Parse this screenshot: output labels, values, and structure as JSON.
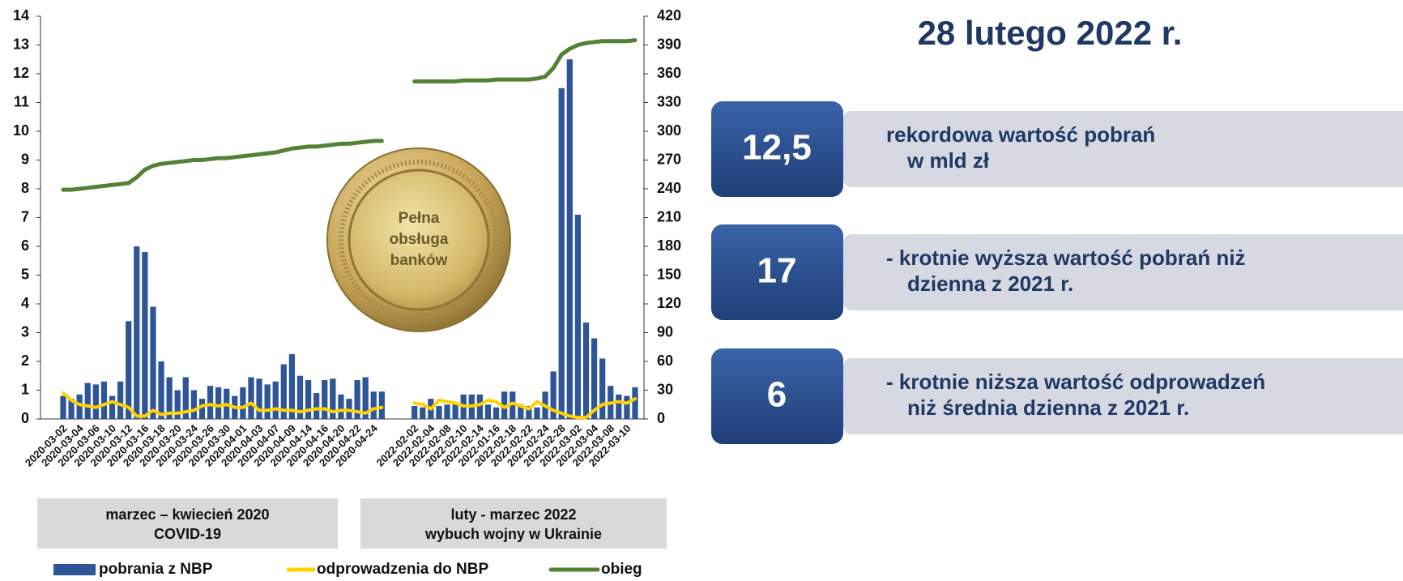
{
  "chart_data": {
    "type": "combo",
    "categories": [
      "2020-03-02",
      null,
      "2020-03-04",
      null,
      "2020-03-06",
      null,
      "2020-03-10",
      null,
      "2020-03-12",
      null,
      "2020-03-16",
      null,
      "2020-03-18",
      null,
      "2020-03-20",
      null,
      "2020-03-24",
      null,
      "2020-03-26",
      null,
      "2020-03-30",
      null,
      "2020-04-01",
      null,
      "2020-04-03",
      null,
      "2020-04-07",
      null,
      "2020-04-09",
      null,
      "2020-04-14",
      null,
      "2020-04-16",
      null,
      "2020-04-20",
      null,
      "2020-04-22",
      null,
      "2020-04-24",
      null,
      null,
      null,
      null,
      "2022-02-02",
      null,
      "2022-02-04",
      null,
      "2022-02-08",
      null,
      "2022-02-10",
      null,
      "2022-02-14",
      null,
      "2022-01-16",
      null,
      "2022-02-18",
      null,
      "2022-02-22",
      null,
      "2022-02-24",
      null,
      "2022-02-28",
      null,
      "2022-03-02",
      null,
      "2022-03-04",
      null,
      "2022-03-08",
      null,
      "2022-03-10",
      null
    ],
    "series": [
      {
        "name": "pobrania z NBP",
        "type": "bar",
        "color": "#2e5597",
        "values": [
          0.8,
          0.7,
          0.85,
          1.25,
          1.2,
          1.3,
          0.8,
          1.3,
          3.4,
          6.0,
          5.8,
          3.9,
          2.0,
          1.45,
          1.0,
          1.45,
          1.0,
          0.7,
          1.15,
          1.1,
          1.05,
          0.8,
          1.1,
          1.45,
          1.4,
          1.2,
          1.3,
          1.9,
          2.25,
          1.5,
          1.35,
          0.9,
          1.35,
          1.4,
          0.85,
          0.7,
          1.35,
          1.45,
          0.95,
          0.95,
          null,
          null,
          null,
          0.45,
          0.4,
          0.7,
          0.45,
          0.5,
          0.5,
          0.85,
          0.85,
          0.85,
          0.5,
          0.4,
          0.95,
          0.95,
          0.5,
          0.45,
          0.4,
          0.95,
          1.65,
          11.5,
          12.5,
          7.1,
          3.35,
          2.8,
          2.1,
          1.15,
          0.85,
          0.8,
          1.1
        ]
      },
      {
        "name": "odprowadzenia do NBP",
        "type": "line",
        "color": "#ffd200",
        "values": [
          0.9,
          0.65,
          0.5,
          0.45,
          0.4,
          0.5,
          0.6,
          0.5,
          0.4,
          0.1,
          0.1,
          0.3,
          0.15,
          0.2,
          0.2,
          0.25,
          0.3,
          0.45,
          0.5,
          0.45,
          0.5,
          0.4,
          0.4,
          0.55,
          0.3,
          0.3,
          0.35,
          0.3,
          0.3,
          0.25,
          0.3,
          0.35,
          0.35,
          0.25,
          0.3,
          0.3,
          0.25,
          0.2,
          0.35,
          0.4,
          null,
          null,
          null,
          0.55,
          0.5,
          0.35,
          0.65,
          0.6,
          0.55,
          0.45,
          0.45,
          0.5,
          0.65,
          0.6,
          0.4,
          0.55,
          0.45,
          0.35,
          0.6,
          0.45,
          0.3,
          0.2,
          0.1,
          0.05,
          0.05,
          0.3,
          0.5,
          0.55,
          0.6,
          0.55,
          0.7
        ]
      },
      {
        "name": "obieg",
        "type": "line",
        "axis": "y2",
        "color": "#548235",
        "values": [
          239,
          239,
          240,
          241,
          242,
          243,
          244,
          245,
          246,
          252,
          260,
          264,
          266,
          267,
          268,
          269,
          270,
          270,
          271,
          272,
          272,
          273,
          274,
          275,
          276,
          277,
          278,
          280,
          282,
          283,
          284,
          284,
          285,
          286,
          287,
          287,
          288,
          289,
          290,
          290,
          null,
          null,
          null,
          352,
          352,
          352,
          352,
          352,
          352,
          353,
          353,
          353,
          353,
          354,
          354,
          354,
          354,
          354,
          355,
          357,
          366,
          380,
          386,
          390,
          392,
          393,
          394,
          394,
          394,
          394,
          395
        ]
      }
    ],
    "ylim": [
      0,
      14
    ],
    "yticks": [
      0,
      1,
      2,
      3,
      4,
      5,
      6,
      7,
      8,
      9,
      10,
      11,
      12,
      13,
      14
    ],
    "y2lim": [
      0,
      420
    ],
    "y2ticks": [
      0,
      30,
      60,
      90,
      120,
      150,
      180,
      210,
      240,
      270,
      300,
      330,
      360,
      390,
      420
    ],
    "grid": false,
    "legend": "bottom",
    "periods": [
      [
        "marzec – kwiecień 2020",
        "COVID-19"
      ],
      [
        "luty - marzec 2022",
        "wybuch wojny w Ukrainie"
      ]
    ],
    "coin": [
      "Pełna",
      "obsługa",
      "banków"
    ]
  },
  "panel": {
    "title": "28 lutego 2022 r.",
    "items": [
      {
        "value": "12,5",
        "lines": [
          "rekordowa wartość pobrań",
          "w mld zł"
        ]
      },
      {
        "value": "17",
        "lines": [
          "- krotnie wyższa wartość pobrań niż",
          "dzienna z 2021 r."
        ]
      },
      {
        "value": "6",
        "lines": [
          "- krotnie niższa wartość odprowadzeń",
          "niż średnia dzienna z 2021 r."
        ]
      }
    ]
  }
}
